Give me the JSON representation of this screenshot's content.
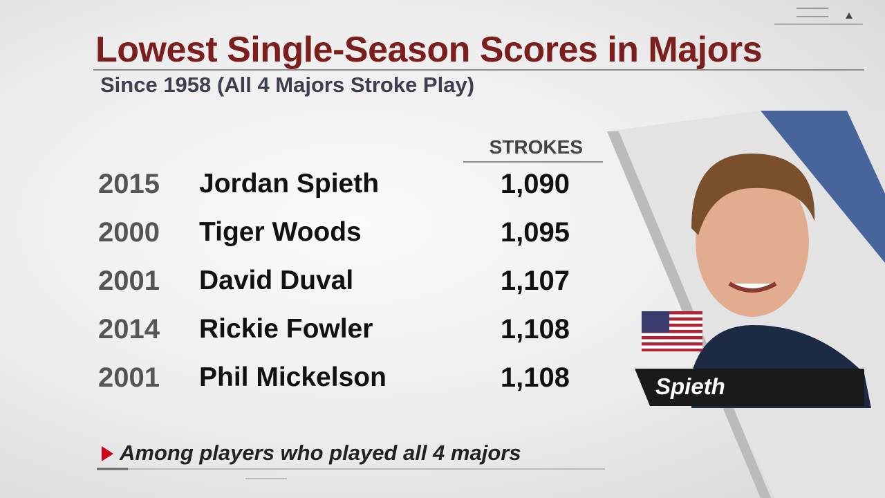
{
  "header": {
    "title": "Lowest Single-Season Scores in Majors",
    "subtitle": "Since 1958 (All 4 Majors Stroke Play)"
  },
  "table": {
    "column_header": "STROKES",
    "rows": [
      [
        "2015",
        "Jordan Spieth",
        "1,090"
      ],
      [
        "2000",
        "Tiger Woods",
        "1,095"
      ],
      [
        "2001",
        "David Duval",
        "1,107"
      ],
      [
        "2014",
        "Rickie Fowler",
        "1,108"
      ],
      [
        "2001",
        "Phil Mickelson",
        "1,108"
      ]
    ]
  },
  "footnote": "Among players who played all 4 majors",
  "photo": {
    "caption": "Spieth"
  }
}
